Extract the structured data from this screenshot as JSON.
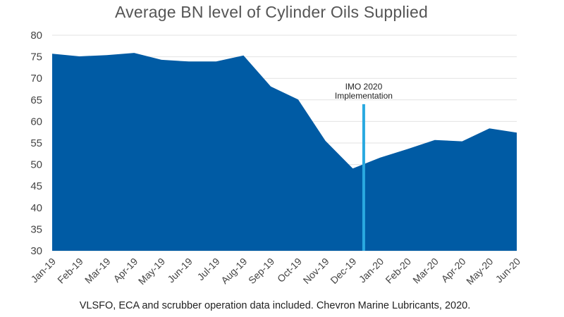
{
  "chart_data": {
    "type": "area",
    "title": "Average BN level of Cylinder Oils Supplied",
    "caption": "VLSFO, ECA and scrubber operation data included. Chevron Marine Lubricants, 2020.",
    "xlabel": "",
    "ylabel": "",
    "categories": [
      "Jan-19",
      "Feb-19",
      "Mar-19",
      "Apr-19",
      "May-19",
      "Jun-19",
      "Jul-19",
      "Aug-19",
      "Sep-19",
      "Oct-19",
      "Nov-19",
      "Dec-19",
      "Jan-20",
      "Feb-20",
      "Mar-20",
      "Apr-20",
      "May-20",
      "Jun-20"
    ],
    "values": [
      75.7,
      75.1,
      75.4,
      75.9,
      74.3,
      73.9,
      73.9,
      75.3,
      68.1,
      65.1,
      55.5,
      49.1,
      51.6,
      53.6,
      55.7,
      55.4,
      58.4,
      57.4
    ],
    "ylim": [
      30,
      80
    ],
    "yticks": [
      30,
      35,
      40,
      45,
      50,
      55,
      60,
      65,
      70,
      75,
      80
    ],
    "grid": true,
    "colors": {
      "area": "#005ba4",
      "marker": "#29a9e0",
      "grid": "#e2e2e2"
    },
    "annotation": {
      "lines": [
        "IMO 2020",
        "Implementation"
      ],
      "x_between": [
        "Dec-19",
        "Jan-20"
      ],
      "x_fraction": 0.4
    }
  }
}
